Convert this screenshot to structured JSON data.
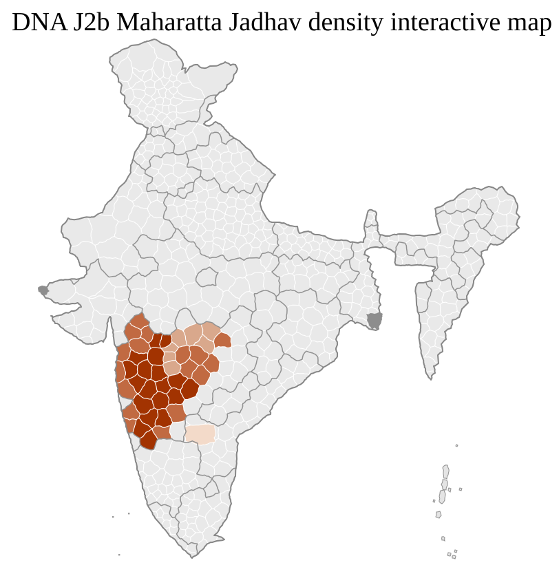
{
  "title": "DNA J2b Maharatta Jadhav density interactive map",
  "map": {
    "region": "India districts",
    "highlight_region": "Maharashtra",
    "colors": {
      "background": "#ffffff",
      "land": "#e9e9e9",
      "district_border": "#ffffff",
      "state_border": "#919191",
      "national_border": "#868686",
      "density_very_low": "#f3dac9",
      "density_low": "#d9a88c",
      "density_medium": "#c16a42",
      "density_high": "#a23301",
      "marsh": "#8d8d8d"
    },
    "density_classes": [
      {
        "class": "high",
        "color": "#a23301"
      },
      {
        "class": "medium",
        "color": "#c16a42"
      },
      {
        "class": "low",
        "color": "#d9a88c"
      },
      {
        "class": "very_low",
        "color": "#f3dac9"
      },
      {
        "class": "none",
        "color": "#e9e9e9"
      }
    ]
  }
}
